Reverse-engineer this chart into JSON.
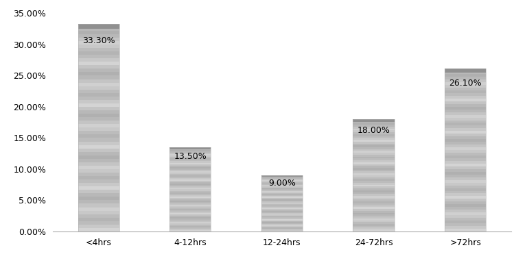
{
  "categories": [
    "<4hrs",
    "4-12hrs",
    "12-24hrs",
    "24-72hrs",
    ">72hrs"
  ],
  "values": [
    33.3,
    13.5,
    9.0,
    18.0,
    26.1
  ],
  "labels": [
    "33.30%",
    "13.50%",
    "9.00%",
    "18.00%",
    "26.10%"
  ],
  "ylim": [
    0,
    35
  ],
  "yticks": [
    0.0,
    5.0,
    10.0,
    15.0,
    20.0,
    25.0,
    30.0,
    35.0
  ],
  "ytick_labels": [
    "0.00%",
    "5.00%",
    "10.00%",
    "15.00%",
    "20.00%",
    "25.00%",
    "30.00%",
    "35.00%"
  ],
  "stripe_colors": [
    "#c8c8c8",
    "#b0b0b0",
    "#a8a8a8",
    "#c0c0c0",
    "#d0d0d0",
    "#b8b8b8",
    "#a0a0a0",
    "#c4c4c4"
  ],
  "bar_top_color": "#909090",
  "background_color": "#ffffff",
  "label_fontsize": 9,
  "tick_fontsize": 9,
  "bar_width": 0.45,
  "n_stripes": 60
}
